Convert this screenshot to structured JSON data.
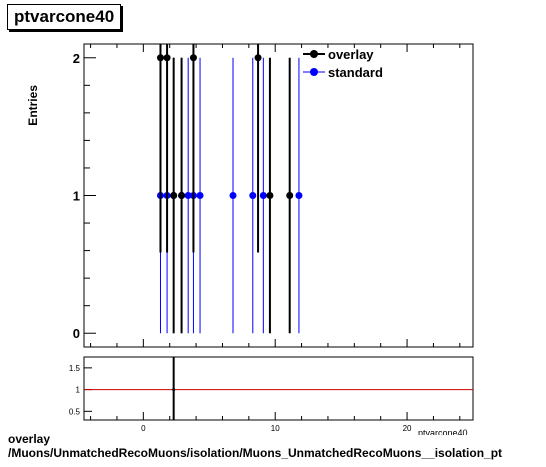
{
  "title": "ptvarcone40",
  "footer_line1": "overlay",
  "footer_line2": "/Muons/UnmatchedRecoMuons/isolation/Muons_UnmatchedRecoMuons__isolation_pt",
  "colors": {
    "overlay": "#000000",
    "standard": "#0000ff",
    "ratio_line": "#cc0000"
  },
  "chart_data": [
    {
      "type": "scatter",
      "title": "ptvarcone40",
      "xlabel": "ptvarcone40",
      "ylabel": "Entries",
      "xlim": [
        -4.5,
        25
      ],
      "ylim": [
        -0.1,
        2.1
      ],
      "y_ticks": [
        0,
        1,
        2
      ],
      "legend": "top-right",
      "grid": false,
      "series": [
        {
          "name": "overlay",
          "color": "#000000",
          "points": [
            {
              "x": 1.3,
              "y": 2
            },
            {
              "x": 1.8,
              "y": 2
            },
            {
              "x": 3.8,
              "y": 2
            },
            {
              "x": 8.7,
              "y": 2
            },
            {
              "x": 2.3,
              "y": 1
            },
            {
              "x": 2.9,
              "y": 1
            },
            {
              "x": 9.6,
              "y": 1
            },
            {
              "x": 11.1,
              "y": 1
            }
          ]
        },
        {
          "name": "standard",
          "color": "#0000ff",
          "points": [
            {
              "x": 1.3,
              "y": 1
            },
            {
              "x": 1.8,
              "y": 1
            },
            {
              "x": 2.3,
              "y": 1
            },
            {
              "x": 2.9,
              "y": 1
            },
            {
              "x": 3.4,
              "y": 1
            },
            {
              "x": 3.8,
              "y": 1
            },
            {
              "x": 4.3,
              "y": 1
            },
            {
              "x": 6.8,
              "y": 1
            },
            {
              "x": 8.3,
              "y": 1
            },
            {
              "x": 9.1,
              "y": 1
            },
            {
              "x": 11.8,
              "y": 1
            }
          ]
        }
      ]
    },
    {
      "type": "scatter",
      "title": "",
      "xlabel": "",
      "ylabel": "",
      "xlim": [
        -4.5,
        25
      ],
      "ylim": [
        0.3,
        1.75
      ],
      "y_ticks": [
        0.5,
        1,
        1.5
      ],
      "x_ticks": [
        0,
        10,
        20
      ],
      "reference_line": 1,
      "series": [
        {
          "name": "",
          "color": "#000000",
          "points": [
            {
              "x": 2.3,
              "y": 1.0
            }
          ]
        }
      ]
    }
  ]
}
